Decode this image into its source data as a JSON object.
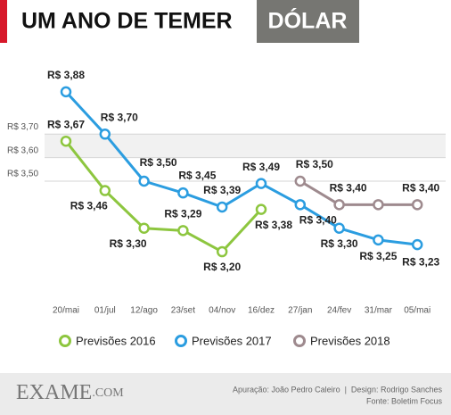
{
  "chart_data": {
    "type": "line",
    "title": "UM ANO DE TEMER",
    "subtitle": "DÓLAR",
    "categories": [
      "20/mai",
      "01/jul",
      "12/ago",
      "23/set",
      "04/nov",
      "16/dez",
      "27/jan",
      "24/fev",
      "31/mar",
      "05/mai"
    ],
    "series": [
      {
        "name": "Previsões 2016",
        "color": "#8dc63f",
        "values": [
          3.67,
          3.46,
          3.3,
          3.29,
          3.2,
          3.38,
          null,
          null,
          null,
          null
        ],
        "value_labels": [
          "R$ 3,67",
          "R$ 3,46",
          "R$ 3,30",
          "R$ 3,29",
          "R$ 3,20",
          "R$ 3,38",
          null,
          null,
          null,
          null
        ]
      },
      {
        "name": "Previsões 2017",
        "color": "#2b9de0",
        "values": [
          3.88,
          3.7,
          3.5,
          3.45,
          3.39,
          3.49,
          3.4,
          3.3,
          3.25,
          3.23
        ],
        "value_labels": [
          "R$ 3,88",
          "R$ 3,70",
          "R$ 3,50",
          "R$ 3,45",
          "R$ 3,39",
          "R$ 3,49",
          "R$ 3,40",
          "R$ 3,30",
          "R$ 3,25",
          "R$ 3,23"
        ]
      },
      {
        "name": "Previsões 2018",
        "color": "#9e8a8e",
        "values": [
          null,
          null,
          null,
          null,
          null,
          null,
          3.5,
          3.4,
          3.4,
          3.4
        ],
        "value_labels": [
          null,
          null,
          null,
          null,
          null,
          null,
          "R$ 3,50",
          "R$ 3,40",
          null,
          "R$ 3,40"
        ]
      }
    ],
    "ylim": [
      2.98,
      4.02
    ],
    "yticks": [
      {
        "value": 3.7,
        "label": "R$ 3,70"
      },
      {
        "value": 3.6,
        "label": "R$ 3,60"
      },
      {
        "value": 3.5,
        "label": "R$ 3,50"
      }
    ],
    "grid": true,
    "legend": "bottom",
    "brand": "EXAME",
    "brand_suffix": ".COM",
    "credits": "Apuração: João Pedro Caleiro  |  Design: Rodrigo Sanches",
    "source": "Fonte: Boletim Focus"
  }
}
